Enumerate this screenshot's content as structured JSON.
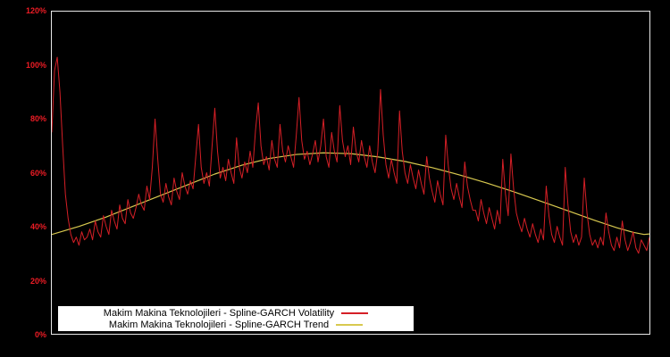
{
  "page": {
    "background": "#000000",
    "axis_label_color": "#ee1c25"
  },
  "chart_data": {
    "type": "line",
    "title": "",
    "xlabel": "",
    "ylabel": "",
    "ylim": [
      0,
      120
    ],
    "grid": false,
    "plot_background": "#000000",
    "border_color": "#e8e8e8",
    "y_ticks": [
      "120%",
      "100%",
      "80%",
      "60%",
      "40%",
      "20%",
      "0%"
    ],
    "x_count": 221,
    "legend": {
      "position": "bottom-center",
      "background": "#ffffff",
      "text_color": "#000000"
    },
    "series": [
      {
        "name": "Makim Makina Teknolojileri - Spline-GARCH Volatility",
        "color": "#d51f26",
        "unit": "%",
        "values": [
          75,
          98,
          103,
          90,
          70,
          52,
          43,
          37,
          34,
          36,
          33,
          38,
          35,
          36,
          39,
          35,
          42,
          38,
          36,
          44,
          40,
          37,
          46,
          42,
          39,
          48,
          43,
          41,
          50,
          45,
          43,
          47,
          52,
          48,
          46,
          55,
          50,
          62,
          80,
          65,
          52,
          49,
          56,
          51,
          48,
          58,
          53,
          50,
          60,
          55,
          52,
          57,
          54,
          66,
          78,
          62,
          56,
          60,
          55,
          70,
          84,
          68,
          58,
          62,
          57,
          65,
          60,
          56,
          73,
          62,
          58,
          64,
          60,
          68,
          62,
          76,
          86,
          70,
          63,
          66,
          61,
          72,
          65,
          62,
          78,
          68,
          64,
          70,
          66,
          62,
          74,
          88,
          72,
          65,
          68,
          63,
          67,
          72,
          64,
          70,
          80,
          66,
          62,
          75,
          68,
          64,
          85,
          72,
          66,
          70,
          63,
          77,
          68,
          64,
          72,
          66,
          62,
          70,
          64,
          60,
          68,
          91,
          74,
          63,
          58,
          65,
          60,
          56,
          83,
          68,
          60,
          56,
          63,
          58,
          54,
          61,
          56,
          52,
          66,
          58,
          53,
          49,
          57,
          52,
          48,
          74,
          62,
          54,
          50,
          56,
          51,
          47,
          64,
          55,
          50,
          46,
          46,
          42,
          50,
          45,
          41,
          47,
          43,
          39,
          46,
          41,
          65,
          52,
          44,
          67,
          54,
          45,
          41,
          38,
          43,
          39,
          36,
          41,
          37,
          34,
          39,
          35,
          55,
          44,
          37,
          34,
          40,
          36,
          33,
          62,
          48,
          38,
          34,
          37,
          33,
          36,
          58,
          45,
          37,
          33,
          35,
          32,
          36,
          33,
          45,
          38,
          33,
          31,
          36,
          32,
          42,
          35,
          31,
          34,
          38,
          32,
          30,
          35,
          33,
          31,
          36
        ]
      },
      {
        "name": "Makim Makina Teknolojileri - Spline-GARCH Trend",
        "color": "#d8c94f",
        "unit": "%",
        "points": [
          [
            0,
            37
          ],
          [
            10,
            40
          ],
          [
            20,
            43.5
          ],
          [
            30,
            47.5
          ],
          [
            40,
            51.5
          ],
          [
            50,
            55.5
          ],
          [
            60,
            59.5
          ],
          [
            70,
            62.8
          ],
          [
            80,
            65.3
          ],
          [
            90,
            66.8
          ],
          [
            100,
            67.4
          ],
          [
            110,
            67.1
          ],
          [
            120,
            65.9
          ],
          [
            130,
            64.2
          ],
          [
            140,
            61.9
          ],
          [
            150,
            59.2
          ],
          [
            160,
            56.2
          ],
          [
            170,
            52.9
          ],
          [
            180,
            49.4
          ],
          [
            190,
            45.8
          ],
          [
            200,
            42.2
          ],
          [
            208,
            39.5
          ],
          [
            214,
            37.8
          ],
          [
            218,
            37.0
          ],
          [
            220,
            37.2
          ]
        ]
      }
    ]
  }
}
